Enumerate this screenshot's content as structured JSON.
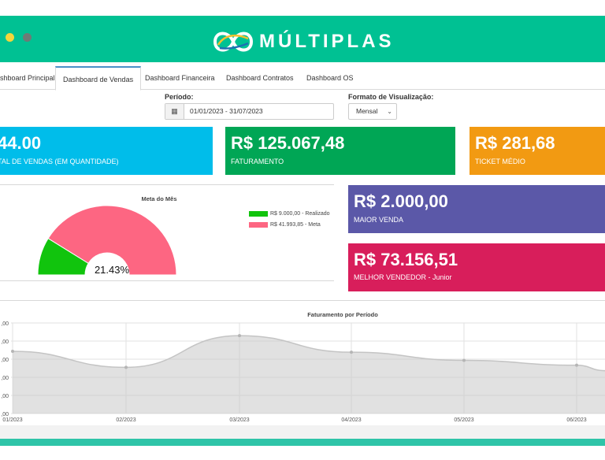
{
  "brand": {
    "name": "MÚLTIPLAS"
  },
  "colors": {
    "header": "#00c193",
    "card_cyan": "#00bdea",
    "card_green": "#00a655",
    "card_orange": "#f29a12",
    "card_purple": "#5b58a8",
    "card_magenta": "#d81e5b",
    "gauge_realized": "#11c40d",
    "gauge_goal": "#fd6682"
  },
  "tabs": [
    {
      "label": "ashboard Principal"
    },
    {
      "label": "Dashboard de Vendas"
    },
    {
      "label": "Dashboard Financeira"
    },
    {
      "label": "Dashboard Contratos"
    },
    {
      "label": "Dashboard OS"
    }
  ],
  "filters": {
    "period_label": "Período:",
    "period_value": "01/01/2023 - 31/07/2023",
    "format_label": "Formato de Visualização:",
    "format_value": "Mensal"
  },
  "cards": {
    "sales_count": {
      "value": "44.00",
      "caption": "TAL DE VENDAS (EM QUANTIDADE)"
    },
    "revenue": {
      "value": "R$ 125.067,48",
      "caption": "FATURAMENTO"
    },
    "ticket": {
      "value": "R$ 281,68",
      "caption": "TICKET MÉDIO"
    },
    "biggest_sale": {
      "value": "R$ 2.000,00",
      "caption": "MAIOR VENDA"
    },
    "best_seller": {
      "value": "R$ 73.156,51",
      "caption": "MELHOR VENDEDOR - Junior"
    }
  },
  "chart_data": [
    {
      "type": "pie",
      "title": "Meta do Mês",
      "slices": [
        {
          "label": "R$ 9.000,00 - Realizado",
          "value": 9000.0
        },
        {
          "label": "R$ 41.993,85 - Meta",
          "value": 41993.85
        }
      ],
      "center_label": "21.43%"
    },
    {
      "type": "area",
      "title": "Faturamento por Período",
      "categories": [
        "01/2023",
        "02/2023",
        "03/2023",
        "04/2023",
        "05/2023",
        "06/2023"
      ],
      "values": [
        20.6,
        15.3,
        25.8,
        20.3,
        17.6,
        16.0
      ],
      "ytick_labels": [
        ",00",
        ",00",
        ",00",
        ",00",
        ",00",
        ",00"
      ],
      "ylim": [
        0,
        30
      ],
      "grid": true
    }
  ]
}
